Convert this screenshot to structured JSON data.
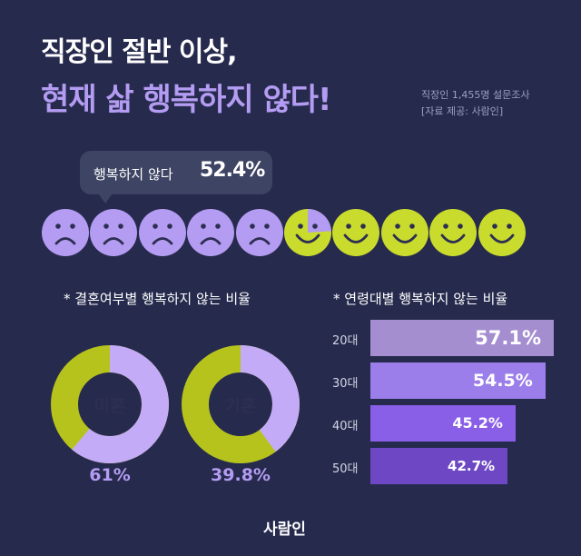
{
  "header": {
    "title_line1": "직장인 절반 이상,",
    "title_line2": "현재 삶 행복하지 않다!",
    "survey_line1": "직장인 1,455명 설문조사",
    "survey_line2": "[자료 제공: 사람인]"
  },
  "highlight": {
    "label": "행복하지 않다",
    "value": "52.4%"
  },
  "colors": {
    "background": "#262a4d",
    "unhappy_face": "#b49cf2",
    "happy_face": "#c9db2d",
    "donut_unhappy": "#c4abf7",
    "donut_other": "#b6c31d",
    "bar_20": "#a48ed0",
    "bar_30": "#9b7eea",
    "bar_40": "#8a5fe8",
    "bar_50": "#6e48c4"
  },
  "faces": {
    "total": 10,
    "unhappy_fraction": 0.524
  },
  "marital_section": {
    "title": "* 결혼여부별 행복하지 않는 비율"
  },
  "age_section": {
    "title": "* 연령대별 행복하지 않는 비율"
  },
  "chart_data": [
    {
      "type": "pie",
      "chart": "marital",
      "categories": [
        "미혼",
        "기혼"
      ],
      "values": [
        61,
        39.8
      ],
      "value_labels": [
        "61%",
        "39.8%"
      ]
    },
    {
      "type": "bar",
      "chart": "age",
      "orientation": "horizontal",
      "categories": [
        "20대",
        "30대",
        "40대",
        "50대"
      ],
      "values": [
        57.1,
        54.5,
        45.2,
        42.7
      ],
      "value_labels": [
        "57.1%",
        "54.5%",
        "45.2%",
        "42.7%"
      ]
    }
  ],
  "footer": {
    "logo": "사람인"
  }
}
